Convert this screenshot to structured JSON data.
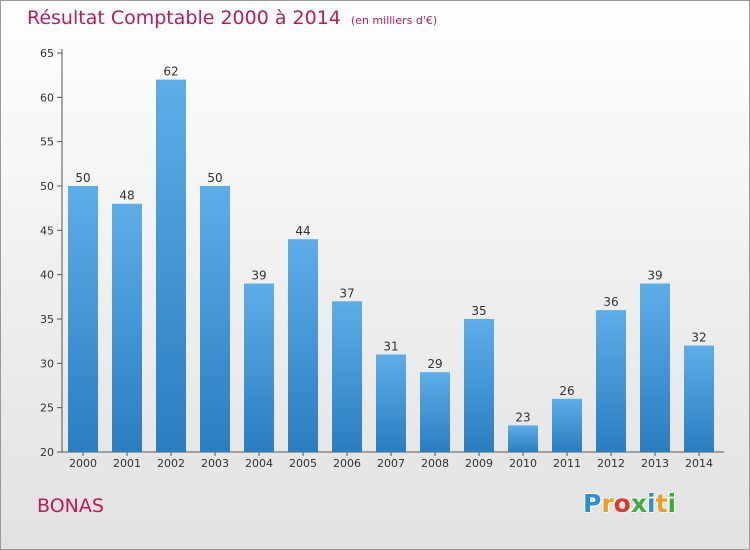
{
  "title": "Résultat Comptable 2000 à 2014",
  "subtitle": "(en milliers d'€)",
  "commune": "BONAS",
  "logo": {
    "letters": [
      {
        "ch": "P",
        "color": "#2a8fd8"
      },
      {
        "ch": "r",
        "color": "#f29b1f"
      },
      {
        "ch": "o",
        "color": "#e5362b"
      },
      {
        "ch": "x",
        "color": "#3cae3c"
      },
      {
        "ch": "i",
        "color": "#2a8fd8"
      },
      {
        "ch": "t",
        "color": "#f29b1f"
      },
      {
        "ch": "i",
        "color": "#3cae3c"
      }
    ]
  },
  "chart_data": {
    "type": "bar",
    "categories": [
      "2000",
      "2001",
      "2002",
      "2003",
      "2004",
      "2005",
      "2006",
      "2007",
      "2008",
      "2009",
      "2010",
      "2011",
      "2012",
      "2013",
      "2014"
    ],
    "values": [
      50,
      48,
      62,
      50,
      39,
      44,
      37,
      31,
      29,
      35,
      23,
      26,
      36,
      39,
      32
    ],
    "ylim": [
      20,
      65
    ],
    "yticks": [
      20,
      25,
      30,
      35,
      40,
      45,
      50,
      55,
      60,
      65
    ],
    "grid": false,
    "colors": {
      "bar_top": "#5dade8",
      "bar_bottom": "#2a7ec0",
      "axis": "#555555",
      "text": "#333333"
    }
  }
}
